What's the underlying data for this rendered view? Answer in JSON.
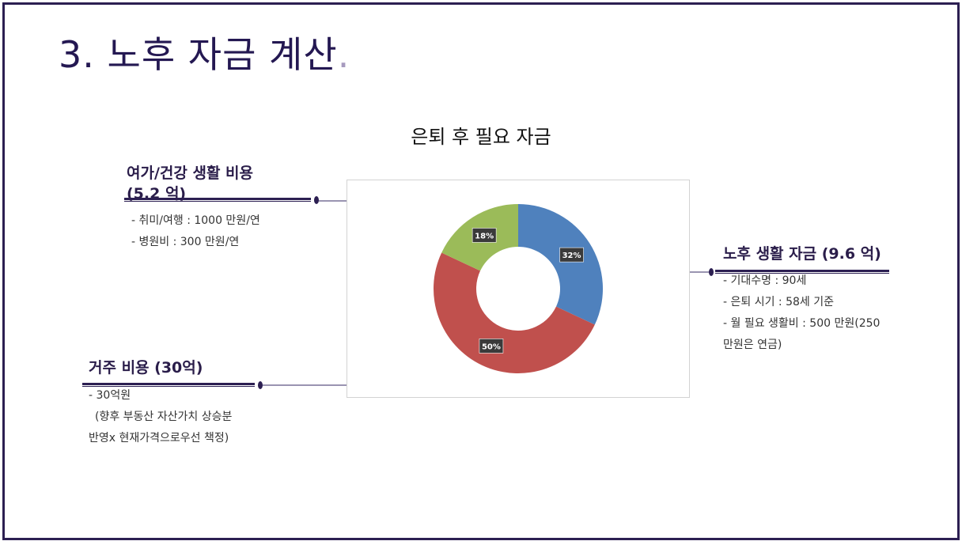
{
  "slide": {
    "title": "3. 노후 자금 계산",
    "title_dot": "."
  },
  "chart_data": {
    "type": "pie",
    "style": "donut",
    "title": "은퇴 후 필요 자금",
    "slices": [
      {
        "label": "32%",
        "value": 32,
        "color": "#4f81bd"
      },
      {
        "label": "50%",
        "value": 50,
        "color": "#c0504d"
      },
      {
        "label": "18%",
        "value": 18,
        "color": "#9bbb59"
      }
    ],
    "legend": "none"
  },
  "callouts": {
    "leisure": {
      "heading_line1": "여가/건강 생활 비용",
      "heading_line2": "(5.2 억)",
      "items": [
        "- 취미/여행 : 1000 만원/연",
        "- 병원비 : 300 만원/연"
      ]
    },
    "housing": {
      "heading": "거주 비용 (30억)",
      "items": [
        "- 30억원",
        "  (향후 부동산 자산가치 상승분",
        "반영x 현재가격으로우선 책정)"
      ]
    },
    "living": {
      "heading": "노후 생활 자금 (9.6 억)",
      "items": [
        "- 기대수명 : 90세",
        "- 은퇴 시기 : 58세 기준",
        "- 월 필요 생활비 : 500 만원(250",
        "만원은 연금)"
      ]
    }
  }
}
